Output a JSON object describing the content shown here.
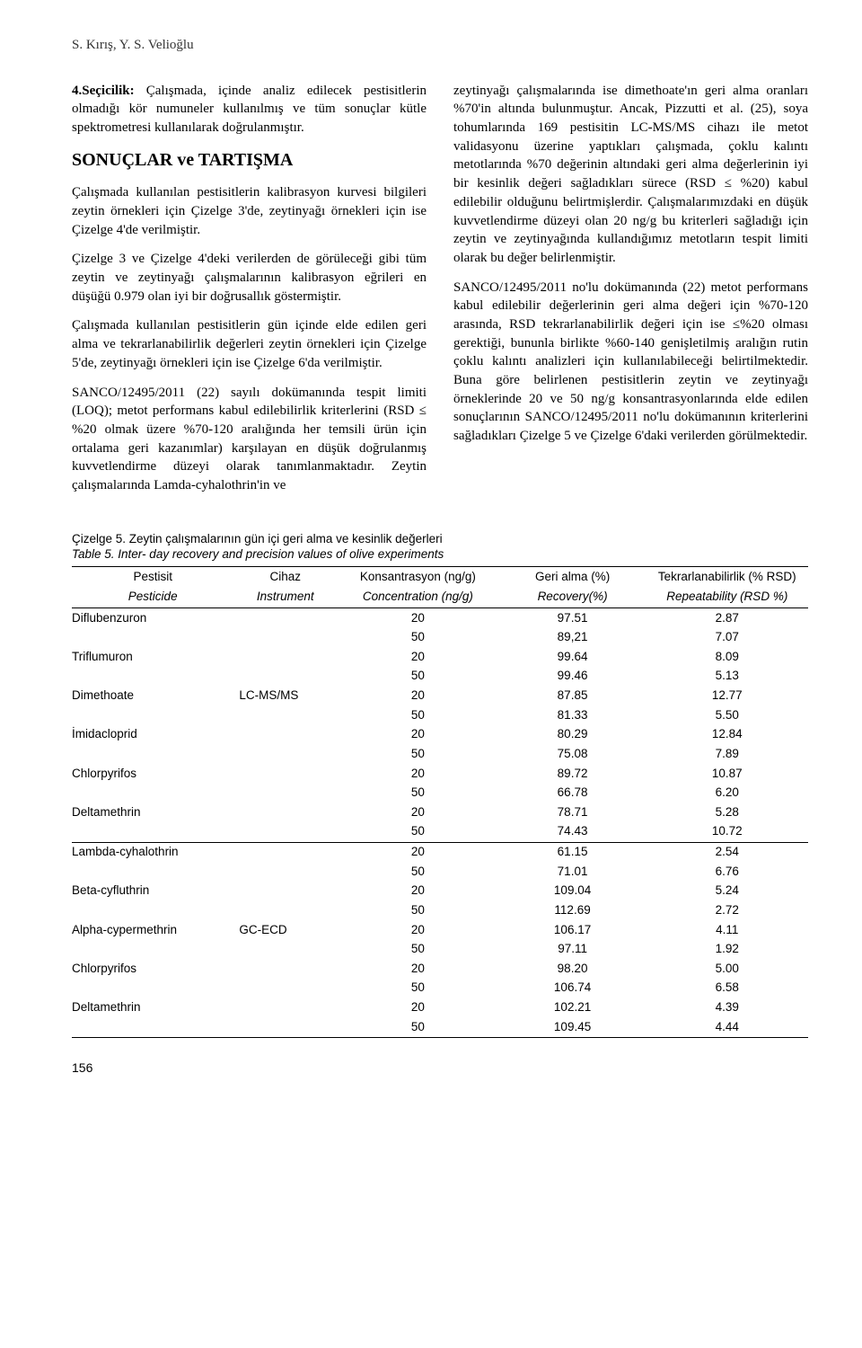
{
  "author_line": "S. Kırış, Y. S. Velioğlu",
  "left_p1_bold": "4.Seçicilik:",
  "left_p1_rest": " Çalışmada, içinde analiz edilecek pestisitlerin olmadığı kör numuneler kullanılmış ve tüm sonuçlar kütle spektrometresi kullanılarak doğrulanmıştır.",
  "section_title": "SONUÇLAR ve TARTIŞMA",
  "left_p2": "Çalışmada kullanılan pestisitlerin kalibrasyon kurvesi bilgileri zeytin örnekleri için Çizelge 3'de, zeytinyağı örnekleri için ise Çizelge 4'de verilmiştir.",
  "left_p3": "Çizelge 3 ve Çizelge 4'deki verilerden de görüleceği gibi tüm zeytin ve zeytinyağı çalışmalarının kalibrasyon eğrileri en düşüğü 0.979 olan iyi bir doğrusallık göstermiştir.",
  "left_p4": "Çalışmada kullanılan pestisitlerin gün içinde elde edilen geri alma ve tekrarlanabilirlik değerleri zeytin örnekleri için Çizelge 5'de, zeytinyağı örnekleri için ise Çizelge 6'da verilmiştir.",
  "left_p5": "SANCO/12495/2011 (22) sayılı dokümanında tespit limiti (LOQ); metot performans kabul edilebilirlik kriterlerini (RSD ≤ %20 olmak üzere %70-120 aralığında her temsili ürün için ortalama geri kazanımlar) karşılayan en düşük doğrulanmış kuvvetlendirme düzeyi olarak tanımlanmaktadır. Zeytin çalışmalarında Lamda-cyhalothrin'in ve",
  "right_p1": "zeytinyağı çalışmalarında ise dimethoate'ın geri alma oranları %70'in altında bulunmuştur. Ancak, Pizzutti et al. (25), soya tohumlarında 169 pestisitin LC-MS/MS cihazı ile metot validasyonu üzerine yaptıkları çalışmada, çoklu kalıntı metotlarında %70 değerinin altındaki geri alma değerlerinin iyi bir kesinlik değeri sağladıkları sürece (RSD ≤ %20) kabul edilebilir olduğunu belirtmişlerdir. Çalışmalarımızdaki en düşük kuvvetlendirme düzeyi olan 20 ng/g bu kriterleri sağladığı için zeytin ve zeytinyağında kullandığımız metotların tespit limiti olarak bu değer belirlenmiştir.",
  "right_p2": "SANCO/12495/2011 no'lu dokümanında (22) metot performans kabul edilebilir değerlerinin geri alma değeri için %70-120 arasında, RSD tekrarlanabilirlik değeri için ise ≤%20 olması gerektiği, bununla birlikte %60-140 genişletilmiş aralığın rutin çoklu kalıntı analizleri için kullanılabileceği belirtilmektedir. Buna göre belirlenen pestisitlerin zeytin ve zeytinyağı örneklerinde 20 ve 50 ng/g konsantrasyonlarında elde edilen sonuçlarının SANCO/12495/2011 no'lu dokümanının kriterlerini sağladıkları Çizelge 5 ve Çizelge 6'daki verilerden görülmektedir.",
  "table": {
    "caption_tr": "Çizelge 5. Zeytin çalışmalarının gün içi geri alma ve kesinlik değerleri",
    "caption_en": "Table 5. Inter- day recovery and precision values of olive experiments",
    "header_row1": [
      "Pestisit",
      "Cihaz",
      "Konsantrasyon (ng/g)",
      "Geri alma (%)",
      "Tekrarlanabilirlik (% RSD)"
    ],
    "header_row2": [
      "Pesticide",
      "Instrument",
      "Concentration (ng/g)",
      "Recovery(%)",
      "Repeatability (RSD %)"
    ],
    "rows": [
      [
        "Diflubenzuron",
        "",
        "20",
        "97.51",
        "2.87"
      ],
      [
        "",
        "",
        "50",
        "89,21",
        "7.07"
      ],
      [
        "Triflumuron",
        "",
        "20",
        "99.64",
        "8.09"
      ],
      [
        "",
        "",
        "50",
        "99.46",
        "5.13"
      ],
      [
        "Dimethoate",
        "LC-MS/MS",
        "20",
        "87.85",
        "12.77"
      ],
      [
        "",
        "",
        "50",
        "81.33",
        "5.50"
      ],
      [
        "İmidacloprid",
        "",
        "20",
        "80.29",
        "12.84"
      ],
      [
        "",
        "",
        "50",
        "75.08",
        "7.89"
      ],
      [
        "Chlorpyrifos",
        "",
        "20",
        "89.72",
        "10.87"
      ],
      [
        "",
        "",
        "50",
        "66.78",
        "6.20"
      ],
      [
        "Deltamethrin",
        "",
        "20",
        "78.71",
        "5.28"
      ],
      [
        "",
        "",
        "50",
        "74.43",
        "10.72"
      ],
      [
        "Lambda-cyhalothrin",
        "",
        "20",
        "61.15",
        "2.54"
      ],
      [
        "",
        "",
        "50",
        "71.01",
        "6.76"
      ],
      [
        "Beta-cyfluthrin",
        "",
        "20",
        "109.04",
        "5.24"
      ],
      [
        "",
        "",
        "50",
        "112.69",
        "2.72"
      ],
      [
        "Alpha-cypermethrin",
        "GC-ECD",
        "20",
        "106.17",
        "4.11"
      ],
      [
        "",
        "",
        "50",
        "97.11",
        "1.92"
      ],
      [
        "Chlorpyrifos",
        "",
        "20",
        "98.20",
        "5.00"
      ],
      [
        "",
        "",
        "50",
        "106.74",
        "6.58"
      ],
      [
        "Deltamethrin",
        "",
        "20",
        "102.21",
        "4.39"
      ],
      [
        "",
        "",
        "50",
        "109.45",
        "4.44"
      ]
    ],
    "separator_after_row": 12,
    "col_widths_pct": [
      22,
      14,
      22,
      20,
      22
    ]
  },
  "page_number": "156"
}
